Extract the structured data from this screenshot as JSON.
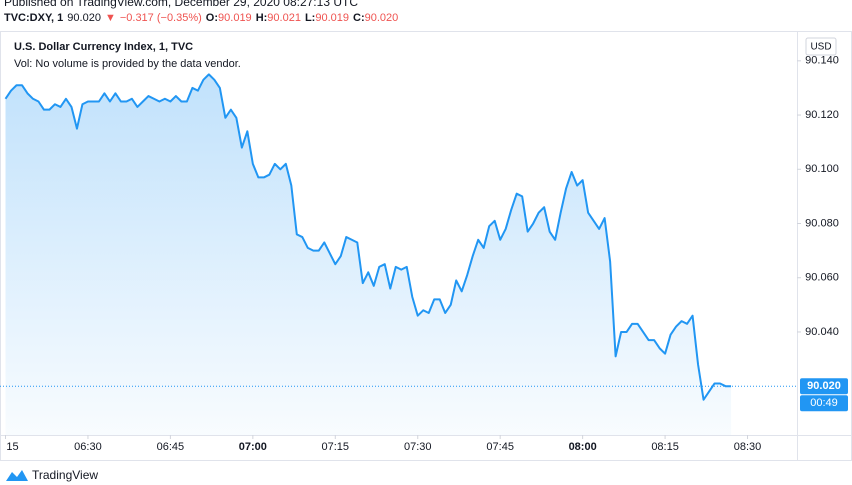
{
  "header": {
    "published": "Published on TradingView.com, December 29, 2020 08:27:13 UTC",
    "symbol": "TVC:DXY, 1",
    "last": "90.020",
    "arrow": "▼",
    "change": "−0.317 (−0.35%)",
    "ohlc": [
      {
        "label": "O:",
        "value": "90.019"
      },
      {
        "label": "H:",
        "value": "90.021"
      },
      {
        "label": "L:",
        "value": "90.019"
      },
      {
        "label": "C:",
        "value": "90.020"
      }
    ]
  },
  "chart_data": {
    "type": "area",
    "title": "U.S. Dollar Currency Index, 1, TVC",
    "subtitle": "Vol: No volume is provided by the data vendor.",
    "currency": "USD",
    "price_label": "90.020",
    "countdown": "00:49",
    "color": "#2196f3",
    "grid": false,
    "x": [
      "06:15",
      "06:16",
      "06:17",
      "06:18",
      "06:19",
      "06:20",
      "06:21",
      "06:22",
      "06:23",
      "06:24",
      "06:25",
      "06:26",
      "06:27",
      "06:28",
      "06:29",
      "06:30",
      "06:31",
      "06:32",
      "06:33",
      "06:34",
      "06:35",
      "06:36",
      "06:37",
      "06:38",
      "06:39",
      "06:40",
      "06:41",
      "06:42",
      "06:43",
      "06:44",
      "06:45",
      "06:46",
      "06:47",
      "06:48",
      "06:49",
      "06:50",
      "06:51",
      "06:52",
      "06:53",
      "06:54",
      "06:55",
      "06:56",
      "06:57",
      "06:58",
      "06:59",
      "07:00",
      "07:01",
      "07:02",
      "07:03",
      "07:04",
      "07:05",
      "07:06",
      "07:07",
      "07:08",
      "07:09",
      "07:10",
      "07:11",
      "07:12",
      "07:13",
      "07:14",
      "07:15",
      "07:16",
      "07:17",
      "07:18",
      "07:19",
      "07:20",
      "07:21",
      "07:22",
      "07:23",
      "07:24",
      "07:25",
      "07:26",
      "07:27",
      "07:28",
      "07:29",
      "07:30",
      "07:31",
      "07:32",
      "07:33",
      "07:34",
      "07:35",
      "07:36",
      "07:37",
      "07:38",
      "07:39",
      "07:40",
      "07:41",
      "07:42",
      "07:43",
      "07:44",
      "07:45",
      "07:46",
      "07:47",
      "07:48",
      "07:49",
      "07:50",
      "07:51",
      "07:52",
      "07:53",
      "07:54",
      "07:55",
      "07:56",
      "07:57",
      "07:58",
      "07:59",
      "08:00",
      "08:01",
      "08:02",
      "08:03",
      "08:04",
      "08:05",
      "08:06",
      "08:07",
      "08:08",
      "08:09",
      "08:10",
      "08:11",
      "08:12",
      "08:13",
      "08:14",
      "08:15",
      "08:16",
      "08:17",
      "08:18",
      "08:19",
      "08:20",
      "08:21",
      "08:22",
      "08:23",
      "08:24",
      "08:25",
      "08:26",
      "08:27"
    ],
    "series": [
      {
        "name": "TVC:DXY",
        "color": "#2196f3",
        "values": [
          90.126,
          90.129,
          90.131,
          90.131,
          90.128,
          90.126,
          90.125,
          90.122,
          90.122,
          90.124,
          90.123,
          90.126,
          90.123,
          90.115,
          90.124,
          90.125,
          90.125,
          90.125,
          90.128,
          90.125,
          90.128,
          90.125,
          90.125,
          90.126,
          90.123,
          90.125,
          90.127,
          90.126,
          90.125,
          90.126,
          90.125,
          90.127,
          90.125,
          90.125,
          90.13,
          90.129,
          90.133,
          90.135,
          90.133,
          90.13,
          90.119,
          90.122,
          90.119,
          90.108,
          90.114,
          90.102,
          90.097,
          90.097,
          90.098,
          90.102,
          90.1,
          90.102,
          90.094,
          90.076,
          90.075,
          90.071,
          90.07,
          90.07,
          90.073,
          90.069,
          90.065,
          90.068,
          90.075,
          90.074,
          90.073,
          90.058,
          90.062,
          90.057,
          90.064,
          90.065,
          90.056,
          90.064,
          90.063,
          90.064,
          90.053,
          90.046,
          90.048,
          90.047,
          90.052,
          90.052,
          90.047,
          90.05,
          90.059,
          90.055,
          90.061,
          90.068,
          90.074,
          90.071,
          90.079,
          90.081,
          90.074,
          90.078,
          90.085,
          90.091,
          90.09,
          90.077,
          90.08,
          90.084,
          90.086,
          90.077,
          90.074,
          90.084,
          90.093,
          90.099,
          90.094,
          90.096,
          90.084,
          90.081,
          90.078,
          90.082,
          90.066,
          90.031,
          90.04,
          90.04,
          90.043,
          90.043,
          90.04,
          90.037,
          90.037,
          90.034,
          90.032,
          90.039,
          90.042,
          90.044,
          90.043,
          90.046,
          90.028,
          90.015,
          90.018,
          90.021,
          90.021,
          90.02,
          90.02
        ]
      }
    ],
    "xlim": [
      "06:14",
      "08:39"
    ],
    "xticks": [
      {
        "value": "06:15",
        "label": "15"
      },
      "06:30",
      "06:45",
      "07:00",
      "07:15",
      "07:30",
      "07:45",
      "08:00",
      "08:15",
      "08:30"
    ],
    "ylim": [
      90.002,
      90.151
    ],
    "yticks": [
      {
        "value": 90.04,
        "label": "90.040"
      },
      {
        "value": 90.06,
        "label": "90.060"
      },
      {
        "value": 90.08,
        "label": "90.080"
      },
      {
        "value": 90.1,
        "label": "90.100"
      },
      {
        "value": 90.12,
        "label": "90.120"
      },
      {
        "value": 90.14,
        "label": "90.140"
      }
    ]
  },
  "footer": {
    "brand": "TradingView"
  }
}
